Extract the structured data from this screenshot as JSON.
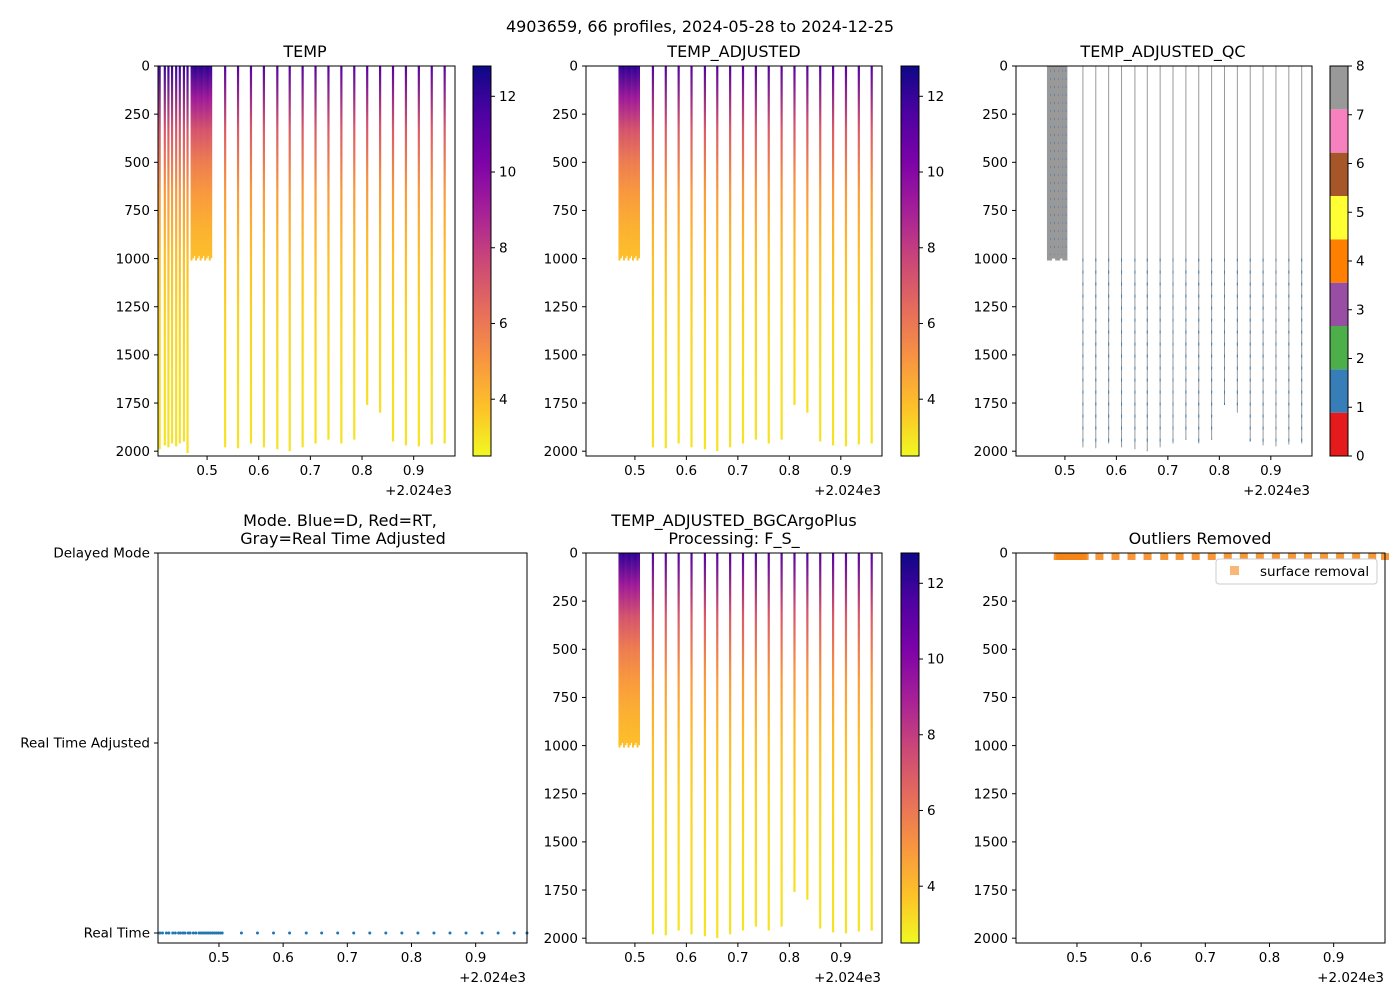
{
  "suptitle": "4903659, 66 profiles, 2024-05-28 to 2024-12-25",
  "colors": {
    "accent_blue": "#1f77b4",
    "orange": "#f58518",
    "gray": "#999999"
  },
  "chart_data": [
    {
      "id": "temp",
      "type": "heatmap",
      "title": "TEMP",
      "xlabel": "",
      "ylabel": "",
      "xlim": [
        0.405,
        0.98
      ],
      "ylim": [
        2025,
        0
      ],
      "x_ticks": [
        0.5,
        0.6,
        0.7,
        0.8,
        0.9
      ],
      "x_tick_labels": [
        "0.5",
        "0.6",
        "0.7",
        "0.8",
        "0.9"
      ],
      "x_offset_label": "+2.024e3",
      "y_ticks": [
        0,
        250,
        500,
        750,
        1000,
        1250,
        1500,
        1750,
        2000
      ],
      "y_tick_labels": [
        "0",
        "250",
        "500",
        "750",
        "1000",
        "1250",
        "1500",
        "1750",
        "2000"
      ],
      "colormap": "plasma_r",
      "colorbar": {
        "range": [
          2.5,
          12.8
        ],
        "ticks": [
          4,
          6,
          8,
          10,
          12
        ],
        "tick_labels": [
          "4",
          "6",
          "8",
          "10",
          "12"
        ]
      },
      "early_profiles": {
        "x": [
          0.408,
          0.418,
          0.425,
          0.432,
          0.44,
          0.447,
          0.455,
          0.462
        ],
        "depth": [
          1990,
          1970,
          1980,
          1960,
          1975,
          1960,
          1950,
          2010
        ]
      },
      "dense_block": {
        "x_start": 0.47,
        "x_end": 0.508,
        "depth_max": 1010
      },
      "profiles": {
        "x": [
          0.535,
          0.56,
          0.585,
          0.61,
          0.636,
          0.66,
          0.685,
          0.71,
          0.735,
          0.76,
          0.785,
          0.81,
          0.835,
          0.86,
          0.885,
          0.91,
          0.935,
          0.96
        ],
        "depth": [
          1980,
          1985,
          1960,
          1980,
          1990,
          2000,
          1980,
          1960,
          1940,
          1960,
          1940,
          1760,
          1800,
          1950,
          1970,
          1975,
          1965,
          1960
        ]
      }
    },
    {
      "id": "temp-adjusted",
      "type": "heatmap",
      "title": "TEMP_ADJUSTED",
      "xlim": [
        0.405,
        0.98
      ],
      "ylim": [
        2025,
        0
      ],
      "x_ticks": [
        0.5,
        0.6,
        0.7,
        0.8,
        0.9
      ],
      "x_tick_labels": [
        "0.5",
        "0.6",
        "0.7",
        "0.8",
        "0.9"
      ],
      "x_offset_label": "+2.024e3",
      "y_ticks": [
        0,
        250,
        500,
        750,
        1000,
        1250,
        1500,
        1750,
        2000
      ],
      "y_tick_labels": [
        "0",
        "250",
        "500",
        "750",
        "1000",
        "1250",
        "1500",
        "1750",
        "2000"
      ],
      "colormap": "plasma_r",
      "colorbar": {
        "range": [
          2.5,
          12.8
        ],
        "ticks": [
          4,
          6,
          8,
          10,
          12
        ],
        "tick_labels": [
          "4",
          "6",
          "8",
          "10",
          "12"
        ]
      },
      "dense_block": {
        "x_start": 0.47,
        "x_end": 0.508,
        "depth_max": 1010
      },
      "profiles": {
        "x": [
          0.535,
          0.56,
          0.585,
          0.61,
          0.636,
          0.66,
          0.685,
          0.71,
          0.735,
          0.76,
          0.785,
          0.81,
          0.835,
          0.86,
          0.885,
          0.91,
          0.935,
          0.96
        ],
        "depth": [
          1980,
          1985,
          1960,
          1980,
          1990,
          2000,
          1980,
          1960,
          1940,
          1960,
          1940,
          1760,
          1800,
          1950,
          1970,
          1975,
          1965,
          1960
        ]
      }
    },
    {
      "id": "temp-adjusted-qc",
      "type": "heatmap",
      "title": "TEMP_ADJUSTED_QC",
      "xlim": [
        0.405,
        0.98
      ],
      "ylim": [
        2025,
        0
      ],
      "x_ticks": [
        0.5,
        0.6,
        0.7,
        0.8,
        0.9
      ],
      "x_tick_labels": [
        "0.5",
        "0.6",
        "0.7",
        "0.8",
        "0.9"
      ],
      "x_offset_label": "+2.024e3",
      "y_ticks": [
        0,
        250,
        500,
        750,
        1000,
        1250,
        1500,
        1750,
        2000
      ],
      "y_tick_labels": [
        "0",
        "250",
        "500",
        "750",
        "1000",
        "1250",
        "1500",
        "1750",
        "2000"
      ],
      "colorbar": {
        "range": [
          0,
          8
        ],
        "ticks": [
          0,
          1,
          2,
          3,
          4,
          5,
          6,
          7,
          8
        ],
        "tick_labels": [
          "0",
          "1",
          "2",
          "3",
          "4",
          "5",
          "6",
          "7",
          "8"
        ],
        "categories": [
          {
            "from": 0,
            "to": 1,
            "color": "#e41a1c"
          },
          {
            "from": 1,
            "to": 2,
            "color": "#377eb8"
          },
          {
            "from": 2,
            "to": 3,
            "color": "#4daf4a"
          },
          {
            "from": 3,
            "to": 4,
            "color": "#984ea3"
          },
          {
            "from": 4,
            "to": 5,
            "color": "#ff7f00"
          },
          {
            "from": 5,
            "to": 6,
            "color": "#ffff33"
          },
          {
            "from": 6,
            "to": 7,
            "color": "#a65628"
          },
          {
            "from": 7,
            "to": 8,
            "color": "#f781bf"
          },
          {
            "from": 8,
            "to": 9,
            "color": "#999999"
          }
        ]
      },
      "gray_block": {
        "x": [
          0.47,
          0.478,
          0.486,
          0.493,
          0.5
        ],
        "depth_max": 1010
      },
      "profiles": {
        "x": [
          0.535,
          0.56,
          0.585,
          0.61,
          0.636,
          0.66,
          0.685,
          0.71,
          0.735,
          0.76,
          0.785,
          0.81,
          0.835,
          0.86,
          0.885,
          0.91,
          0.935,
          0.96
        ],
        "depth": [
          1980,
          1985,
          1960,
          1980,
          1990,
          2000,
          1980,
          1960,
          1940,
          1960,
          1940,
          1760,
          1800,
          1950,
          1970,
          1975,
          1965,
          1960
        ]
      }
    },
    {
      "id": "mode",
      "type": "scatter",
      "title_line1": "Mode. Blue=D, Red=RT,",
      "title_line2": "Gray=Real Time Adjusted",
      "xlim": [
        0.405,
        0.98
      ],
      "ylim": [
        0,
        2
      ],
      "x_ticks": [
        0.5,
        0.6,
        0.7,
        0.8,
        0.9
      ],
      "x_tick_labels": [
        "0.5",
        "0.6",
        "0.7",
        "0.8",
        "0.9"
      ],
      "x_offset_label": "+2.024e3",
      "y_ticks": [
        2,
        1,
        0
      ],
      "y_tick_labels": [
        "Delayed Mode",
        "Real Time Adjusted",
        "Real Time"
      ],
      "points": {
        "x": [
          0.408,
          0.412,
          0.418,
          0.422,
          0.428,
          0.432,
          0.437,
          0.44,
          0.444,
          0.447,
          0.452,
          0.455,
          0.46,
          0.464,
          0.469,
          0.472,
          0.475,
          0.478,
          0.481,
          0.484,
          0.487,
          0.49,
          0.493,
          0.496,
          0.499,
          0.502,
          0.505,
          0.535,
          0.56,
          0.585,
          0.61,
          0.636,
          0.66,
          0.685,
          0.71,
          0.735,
          0.76,
          0.785,
          0.81,
          0.835,
          0.86,
          0.885,
          0.91,
          0.935,
          0.96,
          0.98
        ],
        "y": 0,
        "color": "#1f77b4"
      }
    },
    {
      "id": "temp-bgc",
      "type": "heatmap",
      "title_line1": "TEMP_ADJUSTED_BGCArgoPlus",
      "title_line2": "Processing: F_S_",
      "xlim": [
        0.405,
        0.98
      ],
      "ylim": [
        2025,
        0
      ],
      "x_ticks": [
        0.5,
        0.6,
        0.7,
        0.8,
        0.9
      ],
      "x_tick_labels": [
        "0.5",
        "0.6",
        "0.7",
        "0.8",
        "0.9"
      ],
      "x_offset_label": "+2.024e3",
      "y_ticks": [
        0,
        250,
        500,
        750,
        1000,
        1250,
        1500,
        1750,
        2000
      ],
      "y_tick_labels": [
        "0",
        "250",
        "500",
        "750",
        "1000",
        "1250",
        "1500",
        "1750",
        "2000"
      ],
      "colormap": "plasma_r",
      "colorbar": {
        "range": [
          2.5,
          12.8
        ],
        "ticks": [
          4,
          6,
          8,
          10,
          12
        ],
        "tick_labels": [
          "4",
          "6",
          "8",
          "10",
          "12"
        ]
      },
      "dense_block": {
        "x_start": 0.47,
        "x_end": 0.508,
        "depth_max": 1010
      },
      "profiles": {
        "x": [
          0.535,
          0.56,
          0.585,
          0.61,
          0.636,
          0.66,
          0.685,
          0.71,
          0.735,
          0.76,
          0.785,
          0.81,
          0.835,
          0.86,
          0.885,
          0.91,
          0.935,
          0.96
        ],
        "depth": [
          1980,
          1985,
          1960,
          1980,
          1990,
          2000,
          1980,
          1960,
          1940,
          1960,
          1940,
          1760,
          1800,
          1950,
          1970,
          1975,
          1965,
          1960
        ]
      }
    },
    {
      "id": "outliers",
      "type": "scatter",
      "title": "Outliers Removed",
      "xlim": [
        0.405,
        0.98
      ],
      "ylim": [
        2025,
        0
      ],
      "x_ticks": [
        0.5,
        0.6,
        0.7,
        0.8,
        0.9
      ],
      "x_tick_labels": [
        "0.5",
        "0.6",
        "0.7",
        "0.8",
        "0.9"
      ],
      "x_offset_label": "+2.024e3",
      "y_ticks": [
        0,
        250,
        500,
        750,
        1000,
        1250,
        1500,
        1750,
        2000
      ],
      "y_tick_labels": [
        "0",
        "250",
        "500",
        "750",
        "1000",
        "1250",
        "1500",
        "1750",
        "2000"
      ],
      "legend": {
        "label": "surface removal",
        "placement": "top-right"
      },
      "points": {
        "x": [
          0.47,
          0.473,
          0.476,
          0.479,
          0.482,
          0.485,
          0.488,
          0.491,
          0.494,
          0.497,
          0.5,
          0.503,
          0.506,
          0.509,
          0.512,
          0.535,
          0.56,
          0.585,
          0.61,
          0.636,
          0.66,
          0.685,
          0.71,
          0.735,
          0.76,
          0.785,
          0.81,
          0.835,
          0.86,
          0.885,
          0.91,
          0.935,
          0.96,
          0.98
        ],
        "depth": 5,
        "color": "#f58518"
      }
    }
  ]
}
